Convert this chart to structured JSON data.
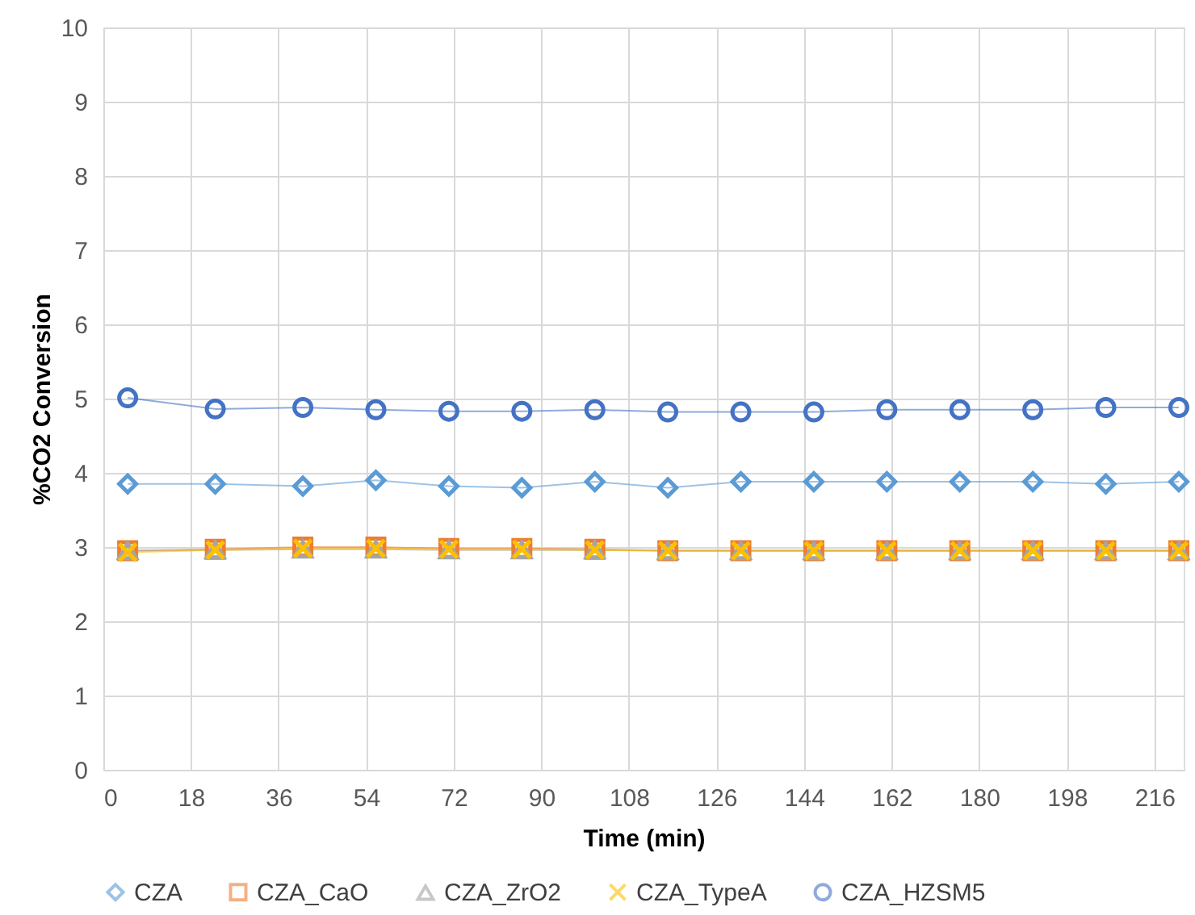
{
  "chart_data": {
    "type": "line",
    "xlabel": "Time (min)",
    "ylabel": "%CO2 Conversion",
    "x": [
      5,
      23,
      41,
      56,
      71,
      86,
      101,
      116,
      131,
      146,
      161,
      176,
      191,
      206,
      221
    ],
    "xlim": [
      0,
      222
    ],
    "xticks": [
      0,
      18,
      36,
      54,
      72,
      90,
      108,
      126,
      144,
      162,
      180,
      198,
      216
    ],
    "ylim": [
      0,
      10
    ],
    "yticks": [
      0,
      1,
      2,
      3,
      4,
      5,
      6,
      7,
      8,
      9,
      10
    ],
    "grid": true,
    "legend": "bottom",
    "series": [
      {
        "name": "CZA",
        "color": "#5b9bd5",
        "marker": "diamond",
        "values": [
          3.85,
          3.85,
          3.82,
          3.9,
          3.82,
          3.8,
          3.88,
          3.8,
          3.88,
          3.88,
          3.88,
          3.88,
          3.88,
          3.85,
          3.88
        ]
      },
      {
        "name": "CZA_CaO",
        "color": "#ed7d31",
        "marker": "square",
        "values": [
          2.95,
          2.97,
          3.0,
          3.0,
          2.98,
          2.98,
          2.97,
          2.95,
          2.95,
          2.95,
          2.95,
          2.95,
          2.95,
          2.95,
          2.95
        ]
      },
      {
        "name": "CZA_ZrO2",
        "color": "#a5a5a5",
        "marker": "triangle",
        "values": [
          2.95,
          2.96,
          2.97,
          2.97,
          2.96,
          2.96,
          2.96,
          2.95,
          2.95,
          2.95,
          2.95,
          2.95,
          2.95,
          2.95,
          2.95
        ]
      },
      {
        "name": "CZA_TypeA",
        "color": "#ffc000",
        "marker": "cross",
        "values": [
          2.93,
          2.96,
          2.98,
          2.98,
          2.97,
          2.97,
          2.96,
          2.95,
          2.95,
          2.95,
          2.95,
          2.95,
          2.95,
          2.95,
          2.95
        ]
      },
      {
        "name": "CZA_HZSM5",
        "color": "#4472c4",
        "marker": "circle",
        "values": [
          5.01,
          4.86,
          4.88,
          4.85,
          4.83,
          4.83,
          4.85,
          4.82,
          4.82,
          4.82,
          4.85,
          4.85,
          4.85,
          4.88,
          4.88
        ]
      }
    ]
  }
}
